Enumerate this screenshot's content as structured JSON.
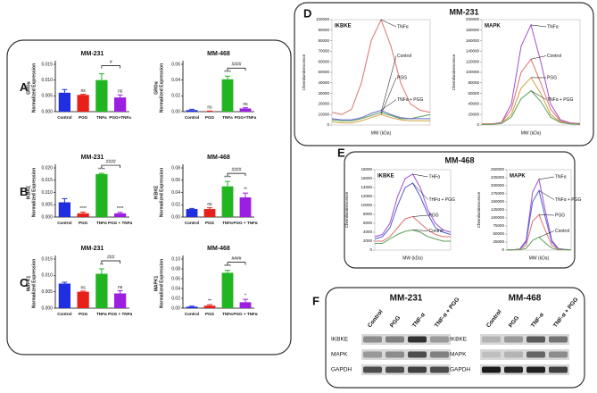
{
  "chart_data": [
    {
      "type": "bar",
      "panel": "A",
      "title": "MM-231",
      "ylabel": [
        "GROα",
        "Normalized Expression"
      ],
      "categories": [
        "Control",
        "PGG",
        "TNFa",
        "PGG+TNFa"
      ],
      "values": [
        0.006,
        0.0053,
        0.01,
        0.0045
      ],
      "errors": [
        0.001,
        0.0002,
        0.002,
        0.0008
      ],
      "annotations": [
        null,
        "ns",
        null,
        "ns"
      ],
      "bracket_label": "#",
      "colors": [
        "#1f2ee0",
        "#e8201a",
        "#22b522",
        "#9b1fe0"
      ],
      "ylim": [
        0,
        0.015
      ],
      "yticks": [
        {
          "value": 0,
          "label": "0.000"
        },
        {
          "value": 0.005,
          "label": "0.005"
        },
        {
          "value": 0.01,
          "label": "0.010"
        },
        {
          "value": 0.015,
          "label": "0.015"
        }
      ]
    },
    {
      "type": "bar",
      "title": "MM-468",
      "ylabel": [
        "GROα",
        "Normalized Expression"
      ],
      "categories": [
        "Control",
        "PGG",
        "TNFa",
        "PGG+TNFa"
      ],
      "values": [
        0.002,
        0.0005,
        0.041,
        0.004
      ],
      "errors": [
        0.001,
        0.0003,
        0.004,
        0.001
      ],
      "annotations": [
        null,
        "ns",
        "****",
        "ns"
      ],
      "bracket_label": "####",
      "colors": [
        "#1f2ee0",
        "#e8201a",
        "#22b522",
        "#9b1fe0"
      ],
      "ylim": [
        0,
        0.06
      ],
      "yticks": [
        {
          "value": 0,
          "label": "0.00"
        },
        {
          "value": 0.02,
          "label": "0.02"
        },
        {
          "value": 0.04,
          "label": "0.04"
        },
        {
          "value": 0.06,
          "label": "0.06"
        }
      ]
    },
    {
      "type": "bar",
      "panel": "B",
      "title": "MM-231",
      "ylabel": [
        "IKBKE",
        "Normalized Expression"
      ],
      "categories": [
        "Control",
        "PGG",
        "TNFα",
        "PGG + TNFα"
      ],
      "values": [
        0.006,
        0.0015,
        0.0175,
        0.0015
      ],
      "errors": [
        0.0015,
        0.0005,
        0.0003,
        0.0004
      ],
      "annotations": [
        null,
        "****",
        "****",
        "****"
      ],
      "bracket_label": "####",
      "colors": [
        "#1f2ee0",
        "#e8201a",
        "#22b522",
        "#9b1fe0"
      ],
      "ylim": [
        0,
        0.02
      ],
      "yticks": [
        {
          "value": 0,
          "label": "0.000"
        },
        {
          "value": 0.005,
          "label": "0.005"
        },
        {
          "value": 0.01,
          "label": "0.010"
        },
        {
          "value": 0.015,
          "label": "0.015"
        },
        {
          "value": 0.02,
          "label": "0.020"
        }
      ]
    },
    {
      "type": "bar",
      "title": "MM-468",
      "ylabel": [
        "IKBKE",
        "Normalized Expression"
      ],
      "categories": [
        "Control",
        "PGG",
        "TNFα",
        "PGG + TNFα"
      ],
      "values": [
        0.013,
        0.013,
        0.05,
        0.032
      ],
      "errors": [
        0.001,
        0.002,
        0.008,
        0.007
      ],
      "annotations": [
        null,
        "ns",
        "****",
        "**"
      ],
      "bracket_label": "####",
      "colors": [
        "#1f2ee0",
        "#e8201a",
        "#22b522",
        "#9b1fe0"
      ],
      "ylim": [
        0,
        0.08
      ],
      "yticks": [
        {
          "value": 0,
          "label": "0.00"
        },
        {
          "value": 0.02,
          "label": "0.02"
        },
        {
          "value": 0.04,
          "label": "0.04"
        },
        {
          "value": 0.06,
          "label": "0.06"
        },
        {
          "value": 0.08,
          "label": "0.08"
        }
      ]
    },
    {
      "type": "bar",
      "panel": "C",
      "title": "MM-231",
      "ylabel": [
        "MAPK1",
        "Normalized Expression"
      ],
      "categories": [
        "Control",
        "PGG",
        "TNFα",
        "PGG + TNFα"
      ],
      "values": [
        0.0075,
        0.005,
        0.0105,
        0.0045
      ],
      "errors": [
        0.0004,
        0.0002,
        0.0015,
        0.0008
      ],
      "annotations": [
        null,
        "ns",
        "**",
        "ns"
      ],
      "bracket_label": "###",
      "colors": [
        "#1f2ee0",
        "#e8201a",
        "#22b522",
        "#9b1fe0"
      ],
      "ylim": [
        0,
        0.015
      ],
      "yticks": [
        {
          "value": 0,
          "label": "0.000"
        },
        {
          "value": 0.005,
          "label": "0.005"
        },
        {
          "value": 0.01,
          "label": "0.010"
        },
        {
          "value": 0.015,
          "label": "0.015"
        }
      ]
    },
    {
      "type": "bar",
      "title": "MM-468",
      "ylabel": [
        "MAPK1",
        "Normalized Expression"
      ],
      "categories": [
        "Control",
        "PGG",
        "TNFα",
        "PGG + TNFα"
      ],
      "values": [
        0.003,
        0.005,
        0.072,
        0.012
      ],
      "errors": [
        0.001,
        0.002,
        0.005,
        0.006
      ],
      "annotations": [
        null,
        "**",
        "****",
        "*"
      ],
      "bracket_label": "####",
      "colors": [
        "#1f2ee0",
        "#e8201a",
        "#22b522",
        "#9b1fe0"
      ],
      "ylim": [
        0,
        0.1
      ],
      "yticks": [
        {
          "value": 0,
          "label": "0.00"
        },
        {
          "value": 0.02,
          "label": "0.02"
        },
        {
          "value": 0.04,
          "label": "0.04"
        },
        {
          "value": 0.06,
          "label": "0.06"
        },
        {
          "value": 0.08,
          "label": "0.08"
        },
        {
          "value": 0.1,
          "label": "0.10"
        }
      ]
    },
    {
      "type": "line",
      "panel": "D",
      "group_title": "MM-231",
      "title": "IKBKE",
      "ylabel": "Chemiluminescence",
      "xlabel": "MW (kDa)",
      "categories": [
        null,
        null,
        null,
        null,
        null,
        null,
        null,
        null,
        null,
        null,
        null
      ],
      "series": [
        {
          "name": "TNFα",
          "color": "#e07070",
          "values": [
            12000,
            10000,
            15000,
            40000,
            80000,
            100000,
            75000,
            40000,
            20000,
            14000,
            12000
          ]
        },
        {
          "name": "Control",
          "color": "#5aa05a",
          "values": [
            5000,
            4000,
            4000,
            6000,
            9000,
            12000,
            9000,
            6000,
            6000,
            8000,
            10000
          ]
        },
        {
          "name": "PGG",
          "color": "#d0a040",
          "values": [
            3000,
            2000,
            2000,
            4000,
            7000,
            10000,
            7000,
            5000,
            4000,
            4000,
            4000
          ]
        },
        {
          "name": "TNFα + PGG",
          "color": "#6a6ad0",
          "values": [
            6000,
            5000,
            5000,
            7000,
            11000,
            14000,
            10000,
            7000,
            6000,
            6000,
            6000
          ]
        }
      ],
      "ylim": [
        0,
        100000
      ],
      "yticks": [
        0,
        10000,
        20000,
        30000,
        40000,
        50000,
        60000,
        70000,
        80000,
        90000,
        100000
      ]
    },
    {
      "type": "line",
      "title": "MAPK",
      "ylabel": "Chemiluminescence",
      "xlabel": "MW (kDa)",
      "categories": [
        null,
        null,
        null,
        null,
        null,
        null,
        null,
        null,
        null,
        null,
        null
      ],
      "series": [
        {
          "name": "TNFα",
          "color": "#a050d0",
          "values": [
            2000,
            2000,
            5000,
            40000,
            150000,
            190000,
            120000,
            40000,
            10000,
            4000,
            3000
          ]
        },
        {
          "name": "Control",
          "color": "#e07070",
          "values": [
            2000,
            2000,
            4000,
            30000,
            100000,
            125000,
            80000,
            30000,
            8000,
            3000,
            2000
          ]
        },
        {
          "name": "PGG",
          "color": "#d0a040",
          "values": [
            1000,
            1000,
            3000,
            20000,
            70000,
            90000,
            60000,
            20000,
            6000,
            2000,
            1000
          ]
        },
        {
          "name": "TNFα + PGG",
          "color": "#5aa05a",
          "values": [
            1000,
            1000,
            3000,
            15000,
            50000,
            65000,
            45000,
            15000,
            5000,
            2000,
            1000
          ]
        }
      ],
      "ylim": [
        0,
        200000
      ],
      "yticks": [
        0,
        20000,
        40000,
        60000,
        80000,
        100000,
        120000,
        140000,
        160000,
        180000,
        200000
      ]
    },
    {
      "type": "line",
      "panel": "E",
      "group_title": "MM-468",
      "title": "IKBKE",
      "ylabel": "Chemiluminescence",
      "xlabel": "MW (kDa)",
      "categories": [
        null,
        null,
        null,
        null,
        null,
        null,
        null,
        null,
        null,
        null,
        null
      ],
      "series": [
        {
          "name": "THFα",
          "color": "#a050d0",
          "values": [
            3000,
            3500,
            6000,
            12000,
            16000,
            17000,
            14000,
            9000,
            6000,
            4500,
            4000
          ]
        },
        {
          "name": "THFα + PGG",
          "color": "#5060d0",
          "values": [
            2500,
            3000,
            5000,
            10000,
            14000,
            15000,
            12000,
            8000,
            5000,
            4000,
            3500
          ]
        },
        {
          "name": "PGG",
          "color": "#e07070",
          "values": [
            2000,
            2000,
            3000,
            5000,
            7000,
            7500,
            6000,
            4500,
            3500,
            3000,
            3000
          ]
        },
        {
          "name": "Control",
          "color": "#5aa05a",
          "values": [
            1500,
            1500,
            2500,
            3500,
            4200,
            4500,
            4000,
            3000,
            2500,
            2000,
            2000
          ]
        }
      ],
      "ylim": [
        0,
        18000
      ],
      "yticks": [
        0,
        2000,
        4000,
        6000,
        8000,
        10000,
        12000,
        14000,
        16000,
        18000
      ]
    },
    {
      "type": "line",
      "title": "MAPK",
      "ylabel": "Chemiluminescence",
      "xlabel": "MW (kDa)",
      "categories": [
        null,
        null,
        null,
        null,
        null,
        null,
        null,
        null,
        null,
        null,
        null
      ],
      "series": [
        {
          "name": "TNFα",
          "color": "#a050d0",
          "values": [
            1000,
            1000,
            3000,
            30000,
            180000,
            220000,
            120000,
            30000,
            5000,
            2000,
            1000
          ]
        },
        {
          "name": "TNFα + PGG",
          "color": "#5060d0",
          "values": [
            1000,
            1000,
            3000,
            25000,
            150000,
            185000,
            100000,
            25000,
            4000,
            2000,
            1000
          ]
        },
        {
          "name": "PGG",
          "color": "#e07070",
          "values": [
            1000,
            1000,
            2000,
            15000,
            90000,
            110000,
            60000,
            15000,
            3000,
            1000,
            1000
          ]
        },
        {
          "name": "Control",
          "color": "#5aa05a",
          "values": [
            500,
            500,
            1000,
            5000,
            30000,
            40000,
            22000,
            6000,
            1000,
            500,
            500
          ]
        }
      ],
      "ylim": [
        0,
        250000
      ],
      "yticks": [
        0,
        25000,
        50000,
        75000,
        100000,
        125000,
        150000,
        175000,
        200000,
        225000,
        250000
      ]
    }
  ],
  "blot": {
    "panel": "F",
    "groups": [
      {
        "title": "MM-231",
        "lanes": [
          "Control",
          "PGG",
          "TNF-α",
          "TNF-α + PGG"
        ],
        "rows": [
          "IKBKE",
          "MAPK",
          "GAPDH"
        ]
      },
      {
        "title": "MM-468",
        "lanes": [
          "Control",
          "PGG",
          "TNF-α",
          "TNF-α + PGG"
        ],
        "rows": [
          "IKBKE",
          "MAPK",
          "GAPDH"
        ]
      }
    ]
  }
}
